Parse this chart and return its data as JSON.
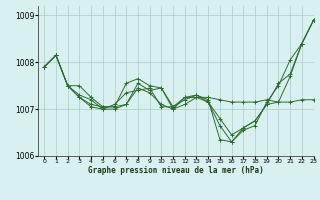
{
  "title": "Graphe pression niveau de la mer (hPa)",
  "background_color": "#d8f0f0",
  "grid_color": "#aacccc",
  "line_color": "#2d6a2d",
  "marker_color": "#2d6a2d",
  "xlim": [
    -0.5,
    23
  ],
  "ylim": [
    1006.0,
    1009.2
  ],
  "yticks": [
    1006,
    1007,
    1008,
    1009
  ],
  "xticks": [
    0,
    1,
    2,
    3,
    4,
    5,
    6,
    7,
    8,
    9,
    10,
    11,
    12,
    13,
    14,
    15,
    16,
    17,
    18,
    19,
    20,
    21,
    22,
    23
  ],
  "series": [
    [
      1007.9,
      1008.15,
      1007.5,
      1007.5,
      1007.25,
      1007.05,
      1007.05,
      1007.55,
      1007.65,
      1007.5,
      1007.45,
      1007.05,
      1007.25,
      1007.25,
      1007.25,
      1007.2,
      1007.15,
      1007.15,
      1007.15,
      1007.2,
      1007.15,
      1007.15,
      1007.2,
      1007.2
    ],
    [
      1007.9,
      1008.15,
      1007.5,
      1007.25,
      1007.1,
      1007.05,
      1007.05,
      1007.1,
      1007.45,
      1007.35,
      1007.1,
      1007.0,
      1007.1,
      1007.25,
      1007.15,
      1006.8,
      1006.45,
      1006.6,
      1006.75,
      1007.1,
      1007.15,
      1007.7,
      1008.4,
      1008.9
    ],
    [
      1007.9,
      1008.15,
      1007.5,
      1007.25,
      1007.05,
      1007.0,
      1007.0,
      1007.1,
      1007.55,
      1007.4,
      1007.45,
      1007.0,
      1007.25,
      1007.3,
      1007.15,
      1006.65,
      1006.3,
      1006.6,
      1006.75,
      1007.1,
      1007.55,
      1007.75,
      1008.4,
      1008.9
    ],
    [
      1007.9,
      1008.15,
      1007.5,
      1007.3,
      1007.2,
      1007.0,
      1007.1,
      1007.35,
      1007.4,
      1007.45,
      1007.05,
      1007.05,
      1007.2,
      1007.3,
      1007.2,
      1006.35,
      1006.3,
      1006.55,
      1006.65,
      1007.15,
      1007.5,
      1008.05,
      1008.4,
      1008.9
    ]
  ]
}
